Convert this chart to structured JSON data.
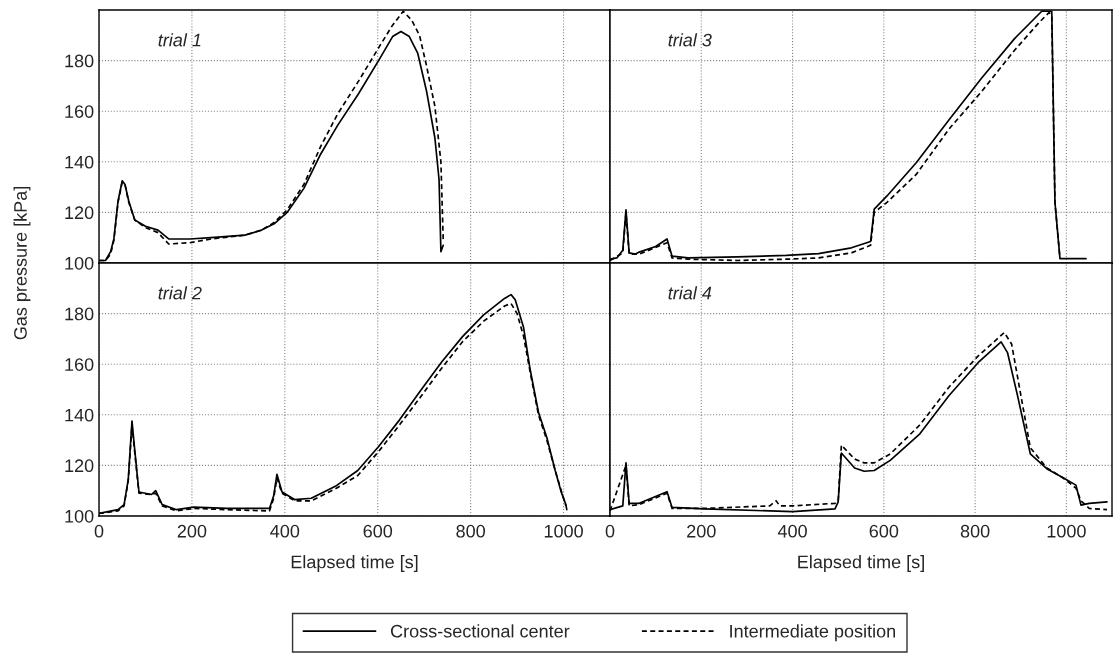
{
  "chart_data": [
    {
      "type": "line",
      "annotations": [
        "trial 1"
      ],
      "ylabel": "Gas pressure [kPa]",
      "xlim": [
        0,
        1100
      ],
      "ylim": [
        100,
        200
      ],
      "xticks": [
        0,
        200,
        400,
        600,
        800,
        1000
      ],
      "yticks": [
        100,
        120,
        140,
        160,
        180
      ],
      "grid": true,
      "tick_labels": "y",
      "legend": "bottom",
      "series": [
        {
          "name": "Cross-sectional center",
          "color": "#000000",
          "line_style": "solid",
          "x": [
            0,
            14,
            25,
            32,
            41,
            50,
            56,
            64,
            77,
            100,
            127,
            150,
            195,
            241,
            314,
            350,
            377,
            405,
            441,
            477,
            514,
            559,
            605,
            632,
            650,
            668,
            686,
            705,
            723,
            732,
            736,
            741
          ],
          "values": [
            101,
            101,
            104.5,
            109.5,
            124.5,
            132.5,
            131,
            124.5,
            117,
            114.5,
            113,
            109.5,
            109.5,
            110,
            111,
            113,
            115.5,
            120,
            129.5,
            143,
            154.5,
            167,
            181,
            189.5,
            191.5,
            189.5,
            183,
            168,
            149.5,
            133,
            104.5,
            107
          ]
        },
        {
          "name": "Intermediate position",
          "color": "#000000",
          "line_style": "dashed",
          "x": [
            0,
            14,
            25,
            32,
            41,
            50,
            56,
            64,
            77,
            100,
            127,
            150,
            195,
            241,
            314,
            350,
            377,
            405,
            441,
            477,
            514,
            559,
            605,
            632,
            655,
            673,
            690,
            705,
            723,
            736,
            741
          ],
          "values": [
            101,
            101,
            103.5,
            109,
            124,
            132,
            131,
            124,
            117,
            114,
            112,
            107.5,
            108,
            109.5,
            111,
            113,
            116,
            121,
            131,
            146,
            159,
            172,
            186,
            194,
            199.5,
            196,
            190,
            178,
            162,
            140,
            109
          ]
        }
      ]
    },
    {
      "type": "line",
      "annotations": [
        "trial 3"
      ],
      "xlim": [
        0,
        1100
      ],
      "ylim": [
        100,
        200
      ],
      "xticks": [
        0,
        200,
        400,
        600,
        800,
        1000
      ],
      "yticks": [
        100,
        120,
        140,
        160,
        180
      ],
      "grid": true,
      "tick_labels": false,
      "series": [
        {
          "color": "#000000",
          "line_style": "solid",
          "x": [
            0,
            15,
            28,
            35,
            42,
            55,
            64,
            100,
            125,
            136,
            171,
            279,
            386,
            457,
            529,
            571,
            579,
            607,
            671,
            743,
            814,
            886,
            946,
            968,
            975,
            986,
            1043
          ],
          "values": [
            101.5,
            102,
            105,
            121,
            104,
            103.5,
            104.3,
            106.5,
            109.5,
            102.7,
            102,
            102.4,
            103,
            103.7,
            106,
            108.5,
            121.3,
            126.5,
            139.6,
            156.6,
            173,
            188.6,
            199.5,
            199.5,
            124,
            101.7,
            101.7
          ]
        },
        {
          "color": "#000000",
          "line_style": "dashed",
          "x": [
            0,
            28,
            35,
            42,
            64,
            125,
            136,
            171,
            279,
            386,
            457,
            529,
            571,
            579,
            607,
            671,
            743,
            814,
            886,
            940,
            962,
            968,
            975,
            986
          ],
          "values": [
            101,
            104,
            120,
            103.5,
            103.5,
            108,
            102,
            101.5,
            101,
            101.5,
            102,
            104,
            107,
            120,
            124,
            135,
            153,
            167.7,
            184,
            195,
            199,
            198,
            124,
            101.7
          ]
        }
      ]
    },
    {
      "type": "line",
      "annotations": [
        "trial 2"
      ],
      "xlabel": "Elapsed time [s]",
      "xlim": [
        0,
        1100
      ],
      "ylim": [
        100,
        200
      ],
      "xticks": [
        0,
        200,
        400,
        600,
        800,
        1000
      ],
      "yticks": [
        100,
        120,
        140,
        160,
        180
      ],
      "grid": true,
      "series": [
        {
          "color": "#000000",
          "line_style": "solid",
          "x": [
            0,
            41,
            54,
            63,
            71,
            77,
            86,
            113,
            122,
            136,
            167,
            204,
            276,
            367,
            376,
            383,
            394,
            421,
            457,
            511,
            557,
            602,
            647,
            692,
            738,
            783,
            828,
            873,
            887,
            896,
            914,
            928,
            946,
            964,
            982,
            995,
            1005,
            1007
          ],
          "values": [
            101,
            102.5,
            104.5,
            114.5,
            137.5,
            126,
            109.5,
            108.5,
            110,
            104.5,
            102.5,
            103.5,
            103,
            103,
            108,
            116.5,
            109.5,
            106.5,
            107,
            112,
            118,
            127.5,
            138,
            149.5,
            161,
            171,
            179.5,
            186,
            187.5,
            185.5,
            174.5,
            158,
            141,
            131,
            118,
            109.5,
            104.5,
            102.5
          ]
        },
        {
          "color": "#000000",
          "line_style": "dashed",
          "x": [
            0,
            41,
            54,
            63,
            71,
            77,
            86,
            113,
            122,
            136,
            167,
            204,
            276,
            367,
            376,
            383,
            394,
            421,
            457,
            511,
            557,
            602,
            647,
            692,
            738,
            783,
            828,
            873,
            887,
            900,
            914,
            928,
            946,
            964,
            982,
            995,
            1005
          ],
          "values": [
            101,
            102,
            104,
            114,
            136,
            125,
            109,
            108.5,
            109,
            104,
            102,
            103,
            102.5,
            102,
            107,
            115,
            109,
            106,
            106,
            111,
            116,
            125.5,
            136,
            147,
            158.5,
            169,
            177,
            183,
            184,
            180,
            171,
            157,
            140,
            130,
            118,
            110,
            104
          ]
        }
      ]
    },
    {
      "type": "line",
      "annotations": [
        "trial 4"
      ],
      "xlabel": "Elapsed time [s]",
      "xlim": [
        0,
        1100
      ],
      "ylim": [
        100,
        200
      ],
      "xticks": [
        0,
        200,
        400,
        600,
        800,
        1000
      ],
      "yticks": [
        100,
        120,
        140,
        160,
        180
      ],
      "grid": true,
      "tick_labels": "x",
      "series": [
        {
          "color": "#000000",
          "line_style": "solid",
          "x": [
            0,
            28,
            35,
            42,
            64,
            125,
            136,
            207,
            350,
            400,
            493,
            500,
            507,
            536,
            557,
            579,
            614,
            679,
            743,
            807,
            857,
            871,
            893,
            921,
            957,
            993,
            1021,
            1032,
            1050,
            1089
          ],
          "values": [
            102.5,
            104,
            121,
            105,
            105,
            109.6,
            103.4,
            102.8,
            102,
            101.7,
            102.8,
            105.6,
            124.9,
            119,
            117.7,
            118,
            122,
            132.5,
            147.6,
            160.7,
            168.8,
            164.6,
            147.6,
            124.6,
            118.7,
            115.1,
            112.2,
            104.3,
            105,
            105.6
          ]
        },
        {
          "color": "#000000",
          "line_style": "dashed",
          "x": [
            0,
            35,
            42,
            64,
            125,
            136,
            207,
            350,
            364,
            372,
            400,
            493,
            500,
            507,
            536,
            557,
            579,
            614,
            679,
            743,
            807,
            864,
            880,
            893,
            921,
            957,
            993,
            1021,
            1032,
            1050,
            1089
          ],
          "values": [
            102,
            120,
            104,
            104.5,
            109,
            103,
            103,
            104,
            106,
            104,
            104,
            105,
            106,
            128,
            122.5,
            121,
            121,
            124.5,
            136,
            151,
            163.3,
            172.5,
            168,
            155,
            127,
            119,
            115,
            111,
            106,
            103,
            102.5
          ]
        }
      ]
    }
  ]
}
